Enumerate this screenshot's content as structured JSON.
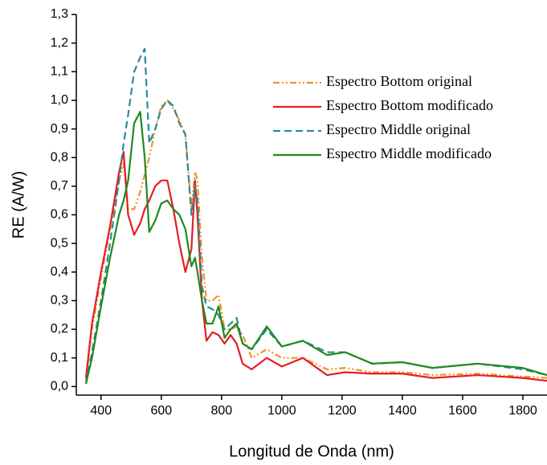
{
  "chart_data": {
    "type": "line",
    "x_label": "Longitud de Onda (nm)",
    "y_label": "RE (A/W)",
    "x": [
      350,
      370,
      400,
      430,
      460,
      475,
      490,
      510,
      530,
      545,
      560,
      580,
      600,
      620,
      640,
      660,
      680,
      700,
      712,
      720,
      735,
      750,
      770,
      790,
      810,
      830,
      850,
      870,
      900,
      950,
      1000,
      1070,
      1150,
      1210,
      1300,
      1400,
      1500,
      1650,
      1800,
      1880
    ],
    "series": [
      {
        "name": "Espectro Bottom original",
        "color": "#f39323",
        "line_style": "dash-dot-dot",
        "values": [
          0.02,
          0.2,
          0.38,
          0.55,
          0.72,
          0.78,
          0.62,
          0.62,
          0.68,
          0.74,
          0.8,
          0.9,
          0.98,
          1.0,
          0.97,
          0.93,
          0.88,
          0.62,
          0.75,
          0.72,
          0.45,
          0.3,
          0.3,
          0.32,
          0.2,
          0.2,
          0.21,
          0.18,
          0.1,
          0.13,
          0.1,
          0.1,
          0.06,
          0.065,
          0.05,
          0.05,
          0.04,
          0.045,
          0.035,
          0.03
        ]
      },
      {
        "name": "Espectro Bottom modificado",
        "color": "#e31e24",
        "line_style": "solid",
        "values": [
          0.03,
          0.22,
          0.4,
          0.56,
          0.75,
          0.82,
          0.6,
          0.53,
          0.57,
          0.62,
          0.65,
          0.7,
          0.72,
          0.72,
          0.62,
          0.5,
          0.4,
          0.48,
          0.72,
          0.6,
          0.3,
          0.16,
          0.19,
          0.18,
          0.15,
          0.18,
          0.15,
          0.08,
          0.06,
          0.1,
          0.07,
          0.1,
          0.04,
          0.05,
          0.045,
          0.045,
          0.03,
          0.04,
          0.03,
          0.02
        ]
      },
      {
        "name": "Espectro Middle original",
        "color": "#2b8a99",
        "line_style": "dashed",
        "values": [
          0.01,
          0.12,
          0.3,
          0.5,
          0.72,
          0.85,
          0.95,
          1.1,
          1.15,
          1.18,
          0.85,
          0.9,
          0.97,
          1.0,
          0.98,
          0.92,
          0.88,
          0.6,
          0.7,
          0.65,
          0.35,
          0.28,
          0.27,
          0.25,
          0.2,
          0.22,
          0.24,
          0.15,
          0.13,
          0.2,
          0.14,
          0.16,
          0.12,
          0.12,
          0.08,
          0.085,
          0.065,
          0.08,
          0.06,
          0.04
        ]
      },
      {
        "name": "Espectro Middle modificado",
        "color": "#1e8a1e",
        "line_style": "solid",
        "values": [
          0.01,
          0.1,
          0.28,
          0.45,
          0.6,
          0.65,
          0.72,
          0.92,
          0.96,
          0.8,
          0.54,
          0.58,
          0.64,
          0.65,
          0.62,
          0.6,
          0.55,
          0.42,
          0.45,
          0.4,
          0.3,
          0.22,
          0.22,
          0.28,
          0.17,
          0.2,
          0.22,
          0.15,
          0.13,
          0.21,
          0.14,
          0.16,
          0.11,
          0.12,
          0.08,
          0.085,
          0.065,
          0.08,
          0.065,
          0.04
        ]
      }
    ],
    "xlim": [
      318,
      1880
    ],
    "xticks": [
      400,
      600,
      800,
      1000,
      1200,
      1400,
      1600,
      1800
    ],
    "ylim": [
      -0.03,
      1.3
    ],
    "yticks": [
      {
        "value": 0,
        "label": "0,0"
      },
      {
        "value": 0.1,
        "label": "0,1"
      },
      {
        "value": 0.2,
        "label": "0,2"
      },
      {
        "value": 0.3,
        "label": "0,3"
      },
      {
        "value": 0.4,
        "label": "0,4"
      },
      {
        "value": 0.5,
        "label": "0,5"
      },
      {
        "value": 0.6,
        "label": "0,6"
      },
      {
        "value": 0.7,
        "label": "0,7"
      },
      {
        "value": 0.8,
        "label": "0,8"
      },
      {
        "value": 0.9,
        "label": "0,9"
      },
      {
        "value": 1.0,
        "label": "1,0"
      },
      {
        "value": 1.1,
        "label": "1,1"
      },
      {
        "value": 1.2,
        "label": "1,2"
      },
      {
        "value": 1.3,
        "label": "1,3"
      }
    ],
    "legend": "top-right"
  }
}
